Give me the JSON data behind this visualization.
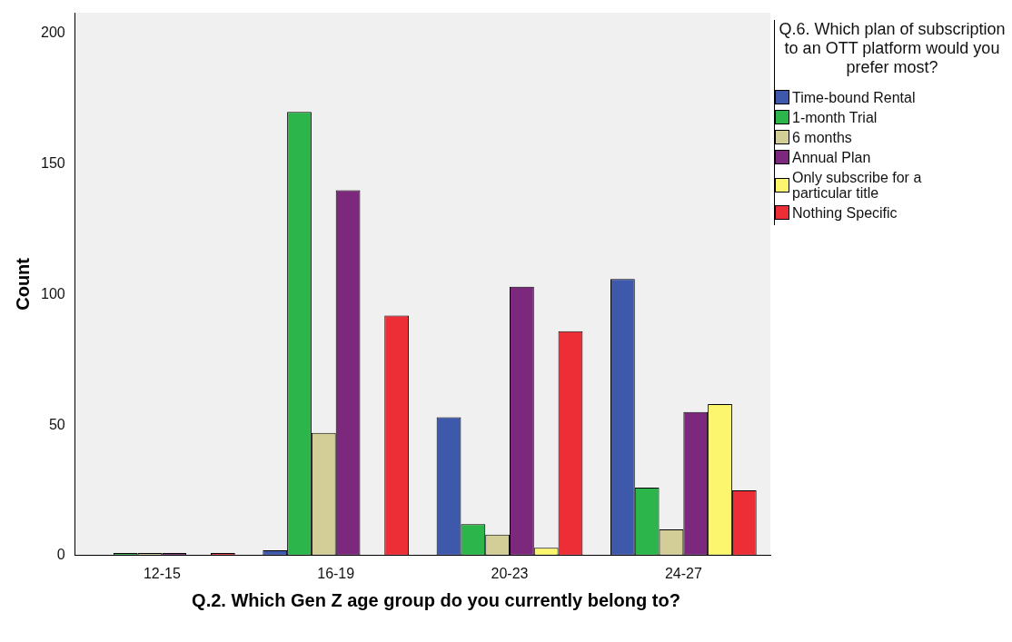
{
  "chart_data": {
    "type": "bar",
    "xlabel": "Q.2. Which Gen Z age group do you currently belong to?",
    "ylabel": "Count",
    "legend_title": "Q.6. Which plan of subscription to an OTT platform would you prefer most?",
    "categories": [
      "12-15",
      "16-19",
      "20-23",
      "24-27"
    ],
    "series": [
      {
        "name": "Time-bound Rental",
        "color": "#3e58ac",
        "values": [
          0,
          2,
          53,
          106
        ]
      },
      {
        "name": "1-month Trial",
        "color": "#2cb54a",
        "values": [
          1,
          170,
          12,
          26
        ]
      },
      {
        "name": "6 months",
        "color": "#d3ce97",
        "values": [
          1,
          47,
          8,
          10
        ]
      },
      {
        "name": "Annual Plan",
        "color": "#7b287d",
        "values": [
          1,
          140,
          103,
          55
        ]
      },
      {
        "name": "Only subscribe for a particular title",
        "color": "#fbf66d",
        "values": [
          0,
          0,
          3,
          58
        ]
      },
      {
        "name": "Nothing Specific",
        "color": "#ee2e37",
        "values": [
          1,
          92,
          86,
          25
        ]
      }
    ],
    "ylim": [
      0,
      208
    ],
    "yticks": [
      0,
      50,
      100,
      150,
      200
    ],
    "grid": false,
    "legend": "right"
  }
}
